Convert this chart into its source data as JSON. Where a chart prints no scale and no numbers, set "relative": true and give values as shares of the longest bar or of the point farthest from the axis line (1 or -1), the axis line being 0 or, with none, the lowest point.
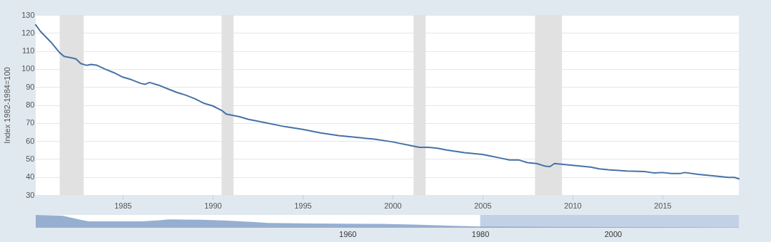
{
  "chart_data": [
    {
      "type": "line",
      "ylabel": "Index 1982-1984=100",
      "xlim": [
        "1980-03",
        "2019-04"
      ],
      "xticks": [
        "1985",
        "1990",
        "1995",
        "2000",
        "2005",
        "2010",
        "2015"
      ],
      "ylim": [
        30,
        130
      ],
      "yticks": [
        30,
        40,
        50,
        60,
        70,
        80,
        90,
        100,
        110,
        120,
        130
      ],
      "grid": "y",
      "legend": false,
      "x": [
        "1980-03",
        "1980-06",
        "1981-01",
        "1981-07",
        "1981-10",
        "1982-04",
        "1982-06",
        "1982-09",
        "1983-01",
        "1983-04",
        "1983-08",
        "1984-01",
        "1984-07",
        "1985-01",
        "1985-07",
        "1986-01",
        "1986-04",
        "1986-07",
        "1987-01",
        "1987-07",
        "1988-01",
        "1988-07",
        "1989-01",
        "1989-07",
        "1990-01",
        "1990-07",
        "1990-10",
        "1991-07",
        "1992-01",
        "1993-01",
        "1994-01",
        "1995-01",
        "1996-01",
        "1997-01",
        "1998-01",
        "1999-01",
        "2000-01",
        "2001-01",
        "2001-07",
        "2002-01",
        "2002-07",
        "2003-01",
        "2004-01",
        "2005-01",
        "2005-07",
        "2006-01",
        "2006-07",
        "2007-01",
        "2007-07",
        "2008-01",
        "2008-07",
        "2008-10",
        "2009-01",
        "2009-07",
        "2010-01",
        "2011-01",
        "2011-07",
        "2012-01",
        "2013-01",
        "2014-01",
        "2014-07",
        "2015-01",
        "2015-07",
        "2016-01",
        "2016-04",
        "2017-01",
        "2018-01",
        "2018-09",
        "2019-01",
        "2019-04"
      ],
      "series": [
        {
          "color": "#4572a7",
          "values": [
            124.5,
            121,
            115,
            109,
            107,
            106,
            105.5,
            103,
            102,
            102.5,
            102,
            100,
            98,
            95.5,
            94,
            92,
            91.5,
            92.5,
            91,
            89,
            87,
            85.5,
            83.5,
            81,
            79.5,
            77,
            75,
            73.5,
            72,
            70,
            68,
            66.5,
            64.5,
            63,
            62,
            61,
            59.5,
            57.5,
            56.5,
            56.5,
            56,
            55,
            53.5,
            52.5,
            51.5,
            50.5,
            49.5,
            49.5,
            48,
            47.5,
            46,
            45.8,
            47.5,
            47,
            46.5,
            45.5,
            44.5,
            44,
            43.3,
            43,
            42.3,
            42.5,
            42,
            42,
            42.5,
            41.5,
            40.5,
            39.8,
            39.8,
            39
          ]
        }
      ],
      "bands": [
        {
          "axis": "x",
          "from": "1981-07",
          "to": "1982-11",
          "color": "#e1e1e1"
        },
        {
          "axis": "x",
          "from": "1990-07",
          "to": "1991-03",
          "color": "#e1e1e1"
        },
        {
          "axis": "x",
          "from": "2001-03",
          "to": "2001-11",
          "color": "#e1e1e1"
        },
        {
          "axis": "x",
          "from": "2007-12",
          "to": "2009-06",
          "color": "#e1e1e1"
        }
      ]
    },
    {
      "type": "area",
      "relative": true,
      "xlim": [
        1913,
        2019
      ],
      "xticks": [
        1960,
        1980,
        2000
      ],
      "grid": false,
      "legend": false,
      "x": [
        1913,
        1917,
        1920,
        1921,
        1925,
        1929,
        1932,
        1933,
        1938,
        1942,
        1946,
        1948,
        1955,
        1965,
        1970,
        1975,
        1980,
        1990,
        2000,
        2010,
        2019
      ],
      "series": [
        {
          "color": "#8ba6cc",
          "values": [
            1.0,
            0.95,
            0.6,
            0.5,
            0.5,
            0.5,
            0.6,
            0.65,
            0.62,
            0.55,
            0.45,
            0.38,
            0.34,
            0.3,
            0.25,
            0.17,
            0.1,
            0.07,
            0.05,
            0.04,
            0.03
          ]
        }
      ],
      "bands": [
        {
          "axis": "x",
          "from": 1980,
          "to": 2019,
          "color": "#c3d1e6"
        }
      ]
    }
  ]
}
